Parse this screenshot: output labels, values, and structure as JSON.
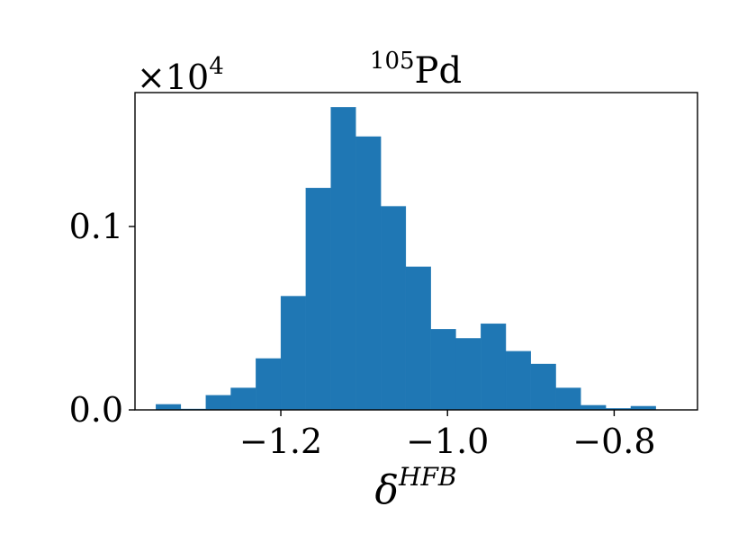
{
  "chart_data": {
    "type": "bar",
    "histogram": true,
    "title_superscript": "105",
    "title_main": "Pd",
    "offset_text_base": "×10",
    "offset_text_exponent": "4",
    "xlabel_main": "δ",
    "xlabel_superscript": "HFB",
    "xlim": [
      -1.375,
      -0.7
    ],
    "ylim": [
      0,
      0.173
    ],
    "bin_edges": [
      -1.35,
      -1.32,
      -1.29,
      -1.26,
      -1.23,
      -1.2,
      -1.17,
      -1.14,
      -1.11,
      -1.08,
      -1.05,
      -1.02,
      -0.99,
      -0.96,
      -0.93,
      -0.9,
      -0.87,
      -0.84,
      -0.81,
      -0.78,
      -0.75
    ],
    "values": [
      0.003,
      0.0005,
      0.008,
      0.012,
      0.028,
      0.062,
      0.121,
      0.165,
      0.149,
      0.111,
      0.078,
      0.044,
      0.039,
      0.047,
      0.032,
      0.025,
      0.012,
      0.0025,
      0.0008,
      0.002
    ],
    "x_ticks": [
      {
        "value": -1.2,
        "label": "−1.2"
      },
      {
        "value": -1.0,
        "label": "−1.0"
      },
      {
        "value": -0.8,
        "label": "−0.8"
      }
    ],
    "y_ticks": [
      {
        "value": 0.0,
        "label": "0.0"
      },
      {
        "value": 0.1,
        "label": "0.1"
      }
    ],
    "bar_color": "#1f77b4",
    "grid": false,
    "legend": "none"
  }
}
